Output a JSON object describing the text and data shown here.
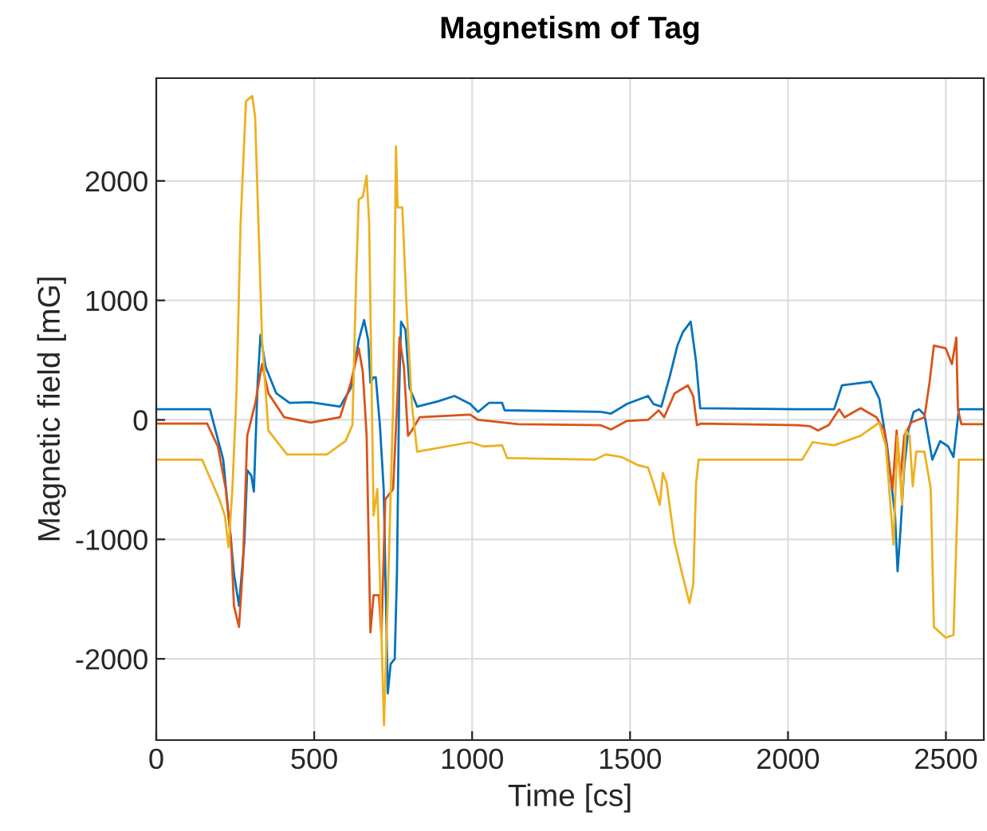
{
  "chart_data": {
    "type": "line",
    "title": "Magnetism of Tag",
    "xlabel": "Time [cs]",
    "ylabel": "Magnetic field [mG]",
    "xlim": [
      0,
      2620
    ],
    "ylim": [
      -2680,
      2860
    ],
    "xticks": [
      0,
      500,
      1000,
      1500,
      2000,
      2500
    ],
    "yticks": [
      -2000,
      -1000,
      0,
      1000,
      2000
    ],
    "grid": true,
    "line_style": "solid",
    "marker": "none",
    "series": [
      {
        "color": "#0072bd",
        "x": [
          0,
          170,
          212,
          237,
          246,
          262,
          279,
          288,
          301,
          309,
          321,
          330,
          346,
          380,
          422,
          489,
          582,
          616,
          641,
          658,
          671,
          678,
          688,
          695,
          708,
          720,
          733,
          742,
          755,
          762,
          769,
          775,
          789,
          802,
          826,
          893,
          944,
          994,
          1019,
          1053,
          1095,
          1103,
          1406,
          1440,
          1490,
          1557,
          1574,
          1599,
          1625,
          1650,
          1667,
          1692,
          1709,
          1722,
          2028,
          2146,
          2171,
          2263,
          2289,
          2314,
          2339,
          2347,
          2356,
          2368,
          2381,
          2398,
          2415,
          2432,
          2457,
          2482,
          2507,
          2524,
          2541,
          2620
        ],
        "values": [
          89,
          89,
          -333,
          -1022,
          -1289,
          -1556,
          -1022,
          -422,
          -467,
          -600,
          311,
          711,
          444,
          222,
          142,
          147,
          111,
          267,
          667,
          836,
          667,
          311,
          356,
          356,
          -44,
          -578,
          -2289,
          -2044,
          -2000,
          -1289,
          222,
          822,
          756,
          267,
          111,
          156,
          200,
          133,
          67,
          142,
          142,
          80,
          67,
          53,
          133,
          200,
          133,
          111,
          356,
          622,
          733,
          822,
          489,
          98,
          89,
          89,
          289,
          320,
          178,
          -222,
          -800,
          -1267,
          -933,
          -400,
          -89,
          67,
          89,
          44,
          -333,
          -178,
          -222,
          -311,
          89,
          89
        ]
      },
      {
        "color": "#d95319",
        "x": [
          0,
          161,
          195,
          220,
          237,
          246,
          262,
          274,
          288,
          313,
          335,
          355,
          405,
          489,
          582,
          616,
          641,
          654,
          666,
          678,
          688,
          705,
          713,
          725,
          750,
          764,
          770,
          784,
          797,
          809,
          834,
          994,
          1019,
          1146,
          1406,
          1440,
          1490,
          1557,
          1591,
          1608,
          1641,
          1683,
          1700,
          1712,
          1725,
          2028,
          2070,
          2095,
          2129,
          2162,
          2179,
          2230,
          2280,
          2305,
          2331,
          2344,
          2356,
          2368,
          2390,
          2432,
          2448,
          2462,
          2499,
          2519,
          2533,
          2538,
          2549,
          2620
        ],
        "values": [
          -31,
          -31,
          -222,
          -578,
          -1022,
          -1556,
          -1733,
          -1244,
          -133,
          133,
          467,
          222,
          22,
          -22,
          22,
          311,
          600,
          400,
          -133,
          -1778,
          -1467,
          -1467,
          -1800,
          -667,
          -578,
          222,
          689,
          444,
          -133,
          -89,
          22,
          44,
          0,
          -36,
          -44,
          -80,
          -9,
          0,
          80,
          22,
          222,
          289,
          200,
          -44,
          -31,
          -44,
          -53,
          -89,
          -44,
          89,
          22,
          98,
          22,
          -89,
          -578,
          -89,
          -489,
          -133,
          -22,
          22,
          311,
          622,
          600,
          467,
          689,
          89,
          -36,
          -36
        ]
      },
      {
        "color": "#edb120",
        "x": [
          0,
          145,
          178,
          200,
          217,
          229,
          241,
          254,
          267,
          284,
          304,
          313,
          335,
          355,
          414,
          540,
          599,
          621,
          633,
          641,
          654,
          666,
          674,
          688,
          700,
          721,
          738,
          750,
          759,
          764,
          779,
          792,
          809,
          826,
          994,
          1036,
          1095,
          1111,
          1389,
          1423,
          1473,
          1524,
          1557,
          1574,
          1594,
          1604,
          1616,
          1641,
          1667,
          1688,
          1700,
          1709,
          1717,
          2045,
          2078,
          2146,
          2230,
          2289,
          2310,
          2334,
          2347,
          2361,
          2373,
          2385,
          2395,
          2406,
          2432,
          2452,
          2462,
          2499,
          2524,
          2533,
          2541,
          2620
        ],
        "values": [
          -333,
          -333,
          -533,
          -667,
          -800,
          -1067,
          -578,
          222,
          1644,
          2667,
          2711,
          2533,
          667,
          -89,
          -289,
          -289,
          -178,
          -44,
          1200,
          1844,
          1867,
          2044,
          1644,
          -800,
          -578,
          -2556,
          -1022,
          133,
          2289,
          1778,
          1778,
          978,
          133,
          -267,
          -187,
          -222,
          -213,
          -320,
          -333,
          -289,
          -311,
          -378,
          -400,
          -533,
          -711,
          -444,
          -533,
          -1022,
          -1311,
          -1533,
          -1378,
          -533,
          -333,
          -333,
          -187,
          -213,
          -133,
          -22,
          -222,
          -1044,
          -133,
          -711,
          -89,
          -133,
          -556,
          -267,
          -267,
          -578,
          -1733,
          -1822,
          -1800,
          -1022,
          -333,
          -333
        ]
      }
    ]
  }
}
